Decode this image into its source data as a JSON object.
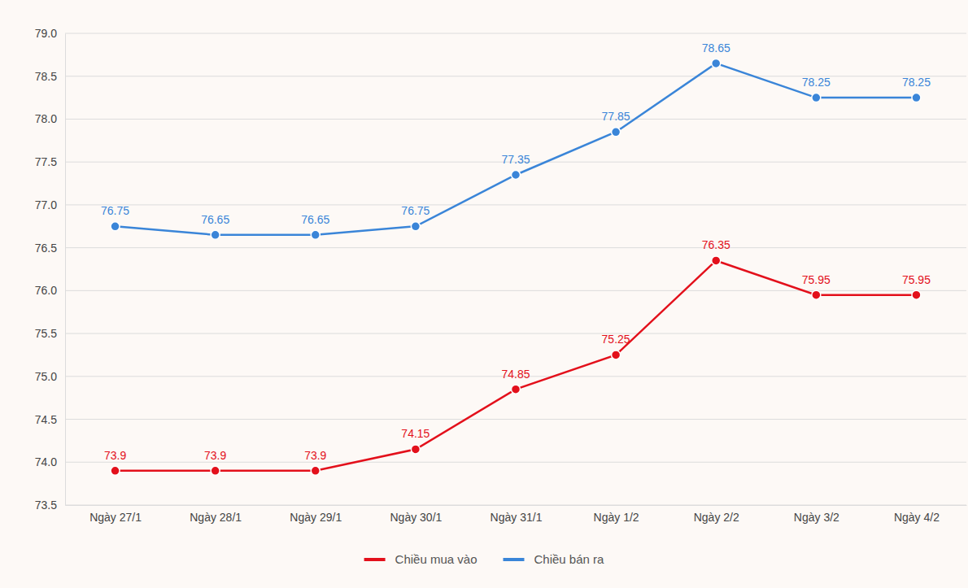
{
  "chart_data": {
    "type": "line",
    "categories": [
      "Ngày 27/1",
      "Ngày 28/1",
      "Ngày 29/1",
      "Ngày 30/1",
      "Ngày 31/1",
      "Ngày 1/2",
      "Ngày 2/2",
      "Ngày 3/2",
      "Ngày 4/2"
    ],
    "series": [
      {
        "name": "Chiều mua vào",
        "color": "#e3101b",
        "values": [
          73.9,
          73.9,
          73.9,
          74.15,
          74.85,
          75.25,
          76.35,
          75.95,
          75.95
        ]
      },
      {
        "name": "Chiều bán ra",
        "color": "#3a85d8",
        "values": [
          76.75,
          76.65,
          76.65,
          76.75,
          77.35,
          77.85,
          78.65,
          78.25,
          78.25
        ]
      }
    ],
    "ylim": [
      73.5,
      79
    ],
    "yticks": [
      73.5,
      {
        "value": 74,
        "label": "74.0"
      },
      74.5,
      {
        "value": 75,
        "label": "75.0"
      },
      75.5,
      {
        "value": 76,
        "label": "76.0"
      },
      76.5,
      {
        "value": 77,
        "label": "77.0"
      },
      77.5,
      {
        "value": 78,
        "label": "78.0"
      },
      78.5,
      {
        "value": 79,
        "label": "79.0"
      }
    ],
    "grid": true,
    "data_labels": true,
    "legend": "bottom",
    "marker": "circle"
  }
}
